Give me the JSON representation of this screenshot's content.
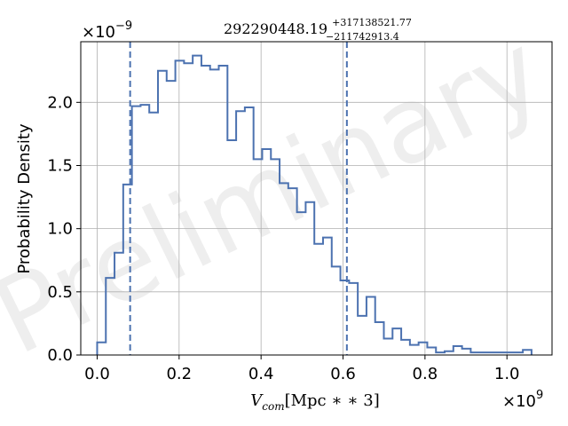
{
  "chart_data": {
    "type": "histogram",
    "title": {
      "median": "292290448.19",
      "plus": "+317138521.77",
      "minus": "−211742913.4"
    },
    "xlabel": {
      "main": "V",
      "sub": "com",
      "unit": "[Mpc ∗ ∗ 3]"
    },
    "ylabel": "Probability Density",
    "x_multiplier": {
      "base": "×10",
      "exp": "9"
    },
    "y_multiplier": {
      "base": "×10",
      "exp": "−9"
    },
    "xlim": [
      -0.04,
      1.11
    ],
    "ylim": [
      0,
      2.48
    ],
    "x_ticks": [
      0.0,
      0.2,
      0.4,
      0.6,
      0.8,
      1.0
    ],
    "x_tick_labels": [
      "0.0",
      "0.2",
      "0.4",
      "0.6",
      "0.8",
      "1.0"
    ],
    "y_ticks": [
      0.0,
      0.5,
      1.0,
      1.5,
      2.0
    ],
    "y_tick_labels": [
      "0.0",
      "0.5",
      "1.0",
      "1.5",
      "2.0"
    ],
    "grid": true,
    "line_color": "#4c72b0",
    "bin_edges": [
      0.0,
      0.0212,
      0.0424,
      0.0636,
      0.0848,
      0.106,
      0.1272,
      0.1484,
      0.1696,
      0.1908,
      0.212,
      0.2332,
      0.2544,
      0.2756,
      0.2968,
      0.318,
      0.3392,
      0.3604,
      0.3816,
      0.4028,
      0.424,
      0.4452,
      0.4664,
      0.4876,
      0.5088,
      0.53,
      0.5512,
      0.5724,
      0.5936,
      0.6148,
      0.636,
      0.6572,
      0.6784,
      0.6996,
      0.7208,
      0.742,
      0.7632,
      0.7844,
      0.8056,
      0.8268,
      0.848,
      0.8692,
      0.8904,
      0.9116,
      0.9328,
      0.954,
      0.9752,
      0.9964,
      1.0176,
      1.0388,
      1.06
    ],
    "values": [
      0.1,
      0.61,
      0.81,
      1.35,
      1.97,
      1.98,
      1.92,
      2.25,
      2.17,
      2.33,
      2.31,
      2.37,
      2.29,
      2.26,
      2.29,
      1.7,
      1.93,
      1.96,
      1.55,
      1.63,
      1.55,
      1.36,
      1.32,
      1.13,
      1.21,
      0.88,
      0.93,
      0.7,
      0.59,
      0.57,
      0.31,
      0.46,
      0.26,
      0.13,
      0.21,
      0.12,
      0.08,
      0.1,
      0.06,
      0.02,
      0.03,
      0.07,
      0.05,
      0.02,
      0.02,
      0.02,
      0.02,
      0.02,
      0.02,
      0.04
    ],
    "vlines": [
      0.0805,
      0.6094
    ],
    "watermark": "Preliminary"
  }
}
